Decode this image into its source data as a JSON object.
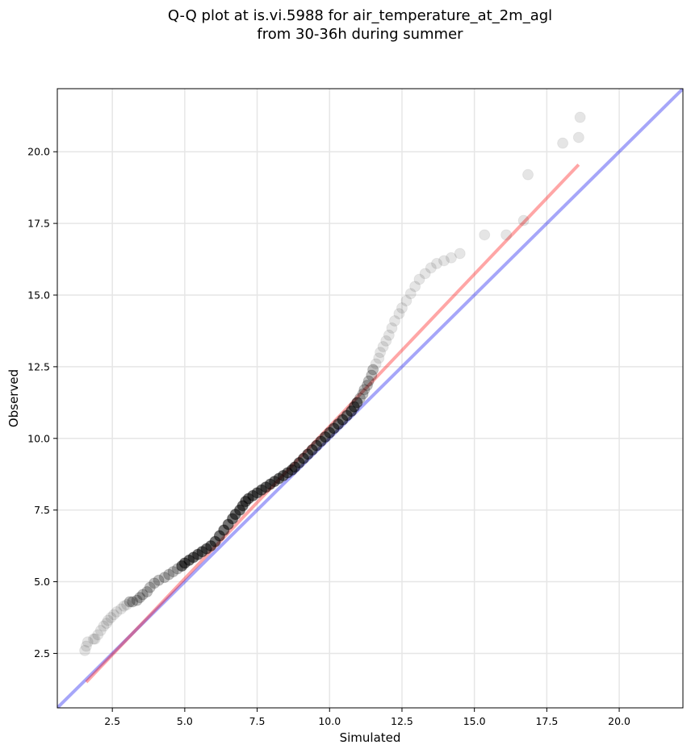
{
  "chart_data": {
    "type": "scatter",
    "title_line1": "Q-Q plot at is.vi.5988 for air_temperature_at_2m_agl",
    "title_line2": "from 30-36h during summer",
    "xlabel": "Simulated",
    "ylabel": "Observed",
    "xlim": [
      0.6,
      22.2
    ],
    "ylim": [
      0.6,
      22.2
    ],
    "xticks": [
      2.5,
      5.0,
      7.5,
      10.0,
      12.5,
      15.0,
      17.5,
      20.0
    ],
    "yticks": [
      2.5,
      5.0,
      7.5,
      10.0,
      12.5,
      15.0,
      17.5,
      20.0
    ],
    "xtick_labels": [
      "2.5",
      "5.0",
      "7.5",
      "10.0",
      "12.5",
      "15.0",
      "17.5",
      "20.0"
    ],
    "ytick_labels": [
      "2.5",
      "5.0",
      "7.5",
      "10.0",
      "12.5",
      "15.0",
      "17.5",
      "20.0"
    ],
    "grid": true,
    "colors": {
      "points": "#000000",
      "fit_line": "#ff0000",
      "identity_line": "#0000ee",
      "grid": "#e6e6e6"
    },
    "fit_line": {
      "x": [
        1.6,
        18.6
      ],
      "y": [
        1.5,
        19.55
      ]
    },
    "identity_line": {
      "x": [
        0.6,
        22.2
      ],
      "y": [
        0.6,
        22.2
      ]
    },
    "points": {
      "x": [
        1.55,
        1.6,
        1.65,
        1.85,
        1.9,
        2.0,
        2.1,
        2.2,
        2.3,
        2.35,
        2.45,
        2.55,
        2.65,
        2.8,
        2.9,
        3.0,
        3.1,
        3.2,
        3.35,
        3.45,
        3.55,
        3.7,
        3.8,
        3.95,
        4.1,
        4.3,
        4.45,
        4.6,
        4.75,
        4.9,
        5.0,
        5.15,
        5.3,
        5.45,
        5.6,
        5.75,
        5.9,
        6.05,
        6.2,
        6.35,
        6.5,
        6.65,
        6.75,
        6.9,
        7.0,
        7.1,
        7.2,
        7.35,
        7.5,
        7.65,
        7.8,
        7.95,
        8.1,
        8.25,
        8.4,
        8.55,
        8.7,
        8.8,
        8.95,
        9.1,
        9.25,
        9.4,
        9.55,
        9.7,
        9.85,
        10.0,
        10.15,
        10.3,
        10.45,
        10.6,
        10.75,
        10.85,
        10.95,
        11.05,
        11.15,
        11.2,
        11.3,
        11.35,
        11.45,
        11.5,
        11.6,
        11.7,
        11.75,
        11.85,
        11.95,
        12.05,
        12.15,
        12.25,
        12.4,
        12.5,
        12.65,
        12.8,
        12.95,
        13.1,
        13.3,
        13.5,
        13.7,
        13.95,
        14.2,
        14.5,
        15.35,
        16.1,
        16.7,
        16.85,
        18.05,
        18.6,
        18.65
      ],
      "y": [
        2.6,
        2.75,
        2.9,
        3.0,
        3.0,
        3.15,
        3.3,
        3.45,
        3.55,
        3.65,
        3.75,
        3.85,
        3.95,
        4.05,
        4.15,
        4.2,
        4.3,
        4.3,
        4.35,
        4.45,
        4.55,
        4.65,
        4.8,
        4.95,
        5.05,
        5.15,
        5.25,
        5.35,
        5.45,
        5.55,
        5.65,
        5.75,
        5.85,
        5.95,
        6.05,
        6.15,
        6.25,
        6.4,
        6.6,
        6.8,
        7.0,
        7.2,
        7.35,
        7.5,
        7.65,
        7.8,
        7.9,
        8.0,
        8.1,
        8.2,
        8.3,
        8.4,
        8.5,
        8.6,
        8.7,
        8.8,
        8.9,
        9.0,
        9.15,
        9.3,
        9.45,
        9.6,
        9.75,
        9.9,
        10.05,
        10.2,
        10.35,
        10.5,
        10.65,
        10.8,
        10.95,
        11.1,
        11.25,
        11.4,
        11.55,
        11.7,
        11.85,
        12.0,
        12.2,
        12.4,
        12.6,
        12.8,
        13.0,
        13.2,
        13.4,
        13.6,
        13.85,
        14.1,
        14.35,
        14.55,
        14.8,
        15.05,
        15.3,
        15.55,
        15.75,
        15.95,
        16.1,
        16.2,
        16.3,
        16.45,
        17.1,
        17.1,
        17.6,
        19.2,
        20.3,
        20.5,
        21.2
      ]
    }
  }
}
